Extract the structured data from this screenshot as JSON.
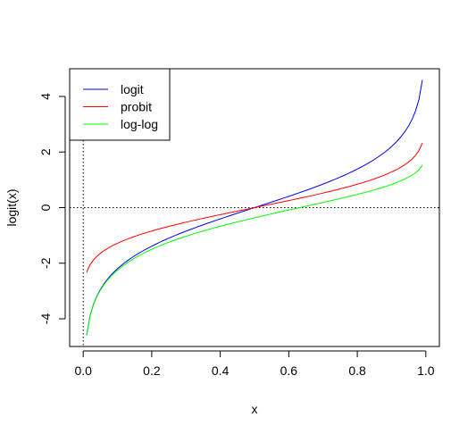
{
  "chart_data": {
    "type": "line",
    "title": "",
    "xlabel": "x",
    "ylabel": "logit(x)",
    "xlim": [
      -0.0396,
      1.0396
    ],
    "ylim": [
      -4.9958,
      4.9958
    ],
    "x_ticks": [
      0.0,
      0.2,
      0.4,
      0.6,
      0.8,
      1.0
    ],
    "x_tick_labels": [
      "0.0",
      "0.2",
      "0.4",
      "0.6",
      "0.8",
      "1.0"
    ],
    "y_ticks": [
      -4,
      -2,
      0,
      2,
      4
    ],
    "y_tick_labels": [
      "-4",
      "-2",
      "0",
      "2",
      "4"
    ],
    "grid": false,
    "reference_lines": {
      "horizontal_at_y": 0,
      "vertical_at_x": 0,
      "style": "dotted"
    },
    "legend_position": "top-left",
    "x": [
      0.01,
      0.02,
      0.03,
      0.04,
      0.05,
      0.06,
      0.07,
      0.08,
      0.09,
      0.1,
      0.11,
      0.12,
      0.13,
      0.14,
      0.15,
      0.16,
      0.17,
      0.18,
      0.19,
      0.2,
      0.21,
      0.22,
      0.23,
      0.24,
      0.25,
      0.26,
      0.27,
      0.28,
      0.29,
      0.3,
      0.31,
      0.32,
      0.33,
      0.34,
      0.35,
      0.36,
      0.37,
      0.38,
      0.39,
      0.4,
      0.41,
      0.42,
      0.43,
      0.44,
      0.45,
      0.46,
      0.47,
      0.48,
      0.49,
      0.5,
      0.51,
      0.52,
      0.53,
      0.54,
      0.55,
      0.56,
      0.57,
      0.58,
      0.59,
      0.6,
      0.61,
      0.62,
      0.63,
      0.64,
      0.65,
      0.66,
      0.67,
      0.68,
      0.69,
      0.7,
      0.71,
      0.72,
      0.73,
      0.74,
      0.75,
      0.76,
      0.77,
      0.78,
      0.79,
      0.8,
      0.81,
      0.82,
      0.83,
      0.84,
      0.85,
      0.86,
      0.87,
      0.88,
      0.89,
      0.9,
      0.91,
      0.92,
      0.93,
      0.94,
      0.95,
      0.96,
      0.97,
      0.98,
      0.99
    ],
    "series": [
      {
        "name": "logit",
        "color": "#0000ff",
        "values": [
          -4.595,
          -3.892,
          -3.476,
          -3.178,
          -2.944,
          -2.752,
          -2.587,
          -2.442,
          -2.314,
          -2.197,
          -2.091,
          -1.992,
          -1.901,
          -1.815,
          -1.735,
          -1.658,
          -1.586,
          -1.516,
          -1.45,
          -1.386,
          -1.325,
          -1.266,
          -1.208,
          -1.153,
          -1.099,
          -1.046,
          -0.995,
          -0.944,
          -0.895,
          -0.847,
          -0.8,
          -0.754,
          -0.708,
          -0.663,
          -0.619,
          -0.575,
          -0.532,
          -0.49,
          -0.447,
          -0.405,
          -0.364,
          -0.323,
          -0.282,
          -0.241,
          -0.201,
          -0.16,
          -0.12,
          -0.08,
          -0.04,
          0.0,
          0.04,
          0.08,
          0.12,
          0.16,
          0.201,
          0.241,
          0.282,
          0.323,
          0.364,
          0.405,
          0.447,
          0.49,
          0.532,
          0.575,
          0.619,
          0.663,
          0.708,
          0.754,
          0.8,
          0.847,
          0.895,
          0.944,
          0.995,
          1.046,
          1.099,
          1.153,
          1.208,
          1.266,
          1.325,
          1.386,
          1.45,
          1.516,
          1.586,
          1.658,
          1.735,
          1.815,
          1.901,
          1.992,
          2.091,
          2.197,
          2.314,
          2.442,
          2.587,
          2.752,
          2.944,
          3.178,
          3.476,
          3.892,
          4.595
        ]
      },
      {
        "name": "probit",
        "color": "#ff0000",
        "values": [
          -2.326,
          -2.054,
          -1.881,
          -1.751,
          -1.645,
          -1.555,
          -1.476,
          -1.405,
          -1.341,
          -1.282,
          -1.227,
          -1.175,
          -1.126,
          -1.08,
          -1.036,
          -0.994,
          -0.954,
          -0.915,
          -0.878,
          -0.842,
          -0.806,
          -0.772,
          -0.739,
          -0.706,
          -0.674,
          -0.643,
          -0.613,
          -0.583,
          -0.553,
          -0.524,
          -0.496,
          -0.468,
          -0.44,
          -0.412,
          -0.385,
          -0.358,
          -0.332,
          -0.305,
          -0.279,
          -0.253,
          -0.228,
          -0.202,
          -0.176,
          -0.151,
          -0.126,
          -0.1,
          -0.075,
          -0.05,
          -0.025,
          0.0,
          0.025,
          0.05,
          0.075,
          0.1,
          0.126,
          0.151,
          0.176,
          0.202,
          0.228,
          0.253,
          0.279,
          0.305,
          0.332,
          0.358,
          0.385,
          0.412,
          0.44,
          0.468,
          0.496,
          0.524,
          0.553,
          0.583,
          0.613,
          0.643,
          0.674,
          0.706,
          0.739,
          0.772,
          0.806,
          0.842,
          0.878,
          0.915,
          0.954,
          0.994,
          1.036,
          1.08,
          1.126,
          1.175,
          1.227,
          1.282,
          1.341,
          1.405,
          1.476,
          1.555,
          1.645,
          1.751,
          1.881,
          2.054,
          2.326
        ]
      },
      {
        "name": "log-log",
        "color": "#00ff00",
        "values": [
          -4.6,
          -3.902,
          -3.491,
          -3.199,
          -2.97,
          -2.783,
          -2.623,
          -2.484,
          -2.361,
          -2.25,
          -2.149,
          -2.057,
          -1.971,
          -1.892,
          -1.817,
          -1.747,
          -1.68,
          -1.617,
          -1.557,
          -1.5,
          -1.445,
          -1.392,
          -1.341,
          -1.291,
          -1.246,
          -1.2,
          -1.156,
          -1.113,
          -1.071,
          -1.031,
          -0.991,
          -0.952,
          -0.914,
          -0.877,
          -0.842,
          -0.806,
          -0.771,
          -0.737,
          -0.703,
          -0.672,
          -0.64,
          -0.608,
          -0.577,
          -0.546,
          -0.515,
          -0.486,
          -0.456,
          -0.425,
          -0.396,
          -0.367,
          -0.338,
          -0.309,
          -0.28,
          -0.251,
          -0.224,
          -0.196,
          -0.168,
          -0.14,
          -0.112,
          -0.087,
          -0.06,
          -0.032,
          -0.005,
          0.022,
          0.049,
          0.076,
          0.103,
          0.131,
          0.158,
          0.186,
          0.213,
          0.241,
          0.269,
          0.297,
          0.327,
          0.356,
          0.385,
          0.415,
          0.445,
          0.476,
          0.508,
          0.539,
          0.572,
          0.605,
          0.64,
          0.675,
          0.712,
          0.75,
          0.789,
          0.834,
          0.88,
          0.929,
          0.982,
          1.037,
          1.097,
          1.169,
          1.253,
          1.362,
          1.527
        ]
      }
    ]
  }
}
